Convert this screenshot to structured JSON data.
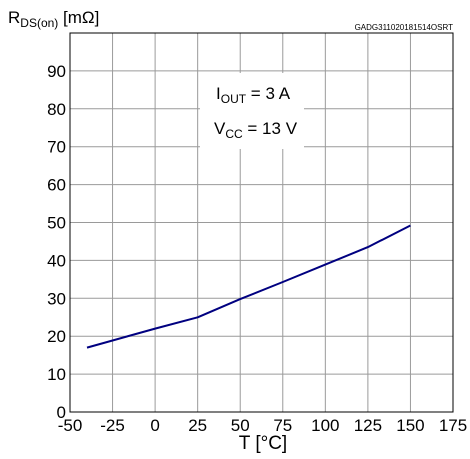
{
  "chart_data": {
    "type": "line",
    "doc_id": "GADG311020181514OSRT",
    "ylabel": {
      "main": "R",
      "sub": "DS(on)",
      "unit": " [mΩ]"
    },
    "xlabel": "T [°C]",
    "xlim": [
      -50,
      175
    ],
    "ylim": [
      0,
      100
    ],
    "x_ticks": [
      "-50",
      "-25",
      "0",
      "25",
      "50",
      "75",
      "100",
      "125",
      "150",
      "175"
    ],
    "x_tick_values": [
      -50,
      -25,
      0,
      25,
      50,
      75,
      100,
      125,
      150,
      175
    ],
    "y_ticks": [
      "0",
      "10",
      "20",
      "30",
      "40",
      "50",
      "60",
      "70",
      "80",
      "90"
    ],
    "y_tick_values": [
      0,
      10,
      20,
      30,
      40,
      50,
      60,
      70,
      80,
      90
    ],
    "grid": true,
    "line_color": "#000080",
    "annotations": [
      {
        "main": "I",
        "sub": "OUT",
        "rest": " = 3 A"
      },
      {
        "main": "V",
        "sub": "CC",
        "rest": " = 13 V"
      }
    ],
    "series": [
      {
        "x": [
          -40,
          0,
          25,
          50,
          75,
          100,
          125,
          150
        ],
        "y": [
          17,
          22,
          25,
          29.8,
          34.3,
          38.9,
          43.5,
          49.2
        ]
      }
    ]
  }
}
